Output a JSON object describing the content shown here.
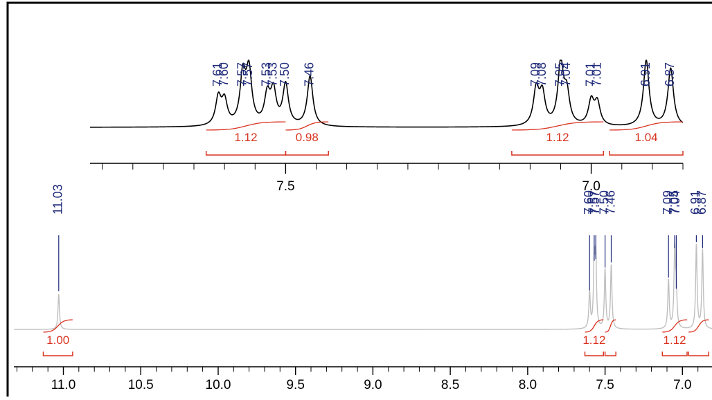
{
  "colors": {
    "frame": "#000000",
    "inset_spectrum": "#000000",
    "main_spectrum": "#bfbfbf",
    "peak_label": "#1f2a7a",
    "integral": "#d9321f",
    "axis": "#000000"
  },
  "chart_data": [
    {
      "type": "line",
      "name": "inset",
      "xlim": [
        7.82,
        6.85
      ],
      "axis_reversed": true,
      "y_axis_visible": false,
      "ticks": {
        "major": [
          7.5,
          7.0
        ],
        "labels": [
          "7.5",
          "7.0"
        ],
        "minor_step": 0.05
      },
      "peaks": [
        {
          "x": 7.61,
          "h": 0.42,
          "label": "7.61"
        },
        {
          "x": 7.6,
          "h": 0.36,
          "label": "7.60"
        },
        {
          "x": 7.57,
          "h": 0.74,
          "label": "7.57"
        },
        {
          "x": 7.56,
          "h": 0.8,
          "label": "7.57"
        },
        {
          "x": 7.53,
          "h": 0.44,
          "label": "7.53"
        },
        {
          "x": 7.52,
          "h": 0.5,
          "label": "7.53"
        },
        {
          "x": 7.5,
          "h": 0.62,
          "label": "7.50"
        },
        {
          "x": 7.46,
          "h": 0.76,
          "label": "7.46"
        },
        {
          "x": 7.09,
          "h": 0.54,
          "label": "7.09"
        },
        {
          "x": 7.08,
          "h": 0.47,
          "label": "7.08"
        },
        {
          "x": 7.05,
          "h": 0.92,
          "label": "7.05"
        },
        {
          "x": 7.04,
          "h": 0.46,
          "label": "7.04"
        },
        {
          "x": 7.0,
          "h": 0.37,
          "label": "7.01"
        },
        {
          "x": 6.99,
          "h": 0.34,
          "label": "7.01"
        },
        {
          "x": 6.91,
          "h": 1.0,
          "label": "6.91"
        },
        {
          "x": 6.87,
          "h": 0.88,
          "label": "6.87"
        }
      ],
      "integrals": [
        {
          "from": 7.63,
          "to": 7.5,
          "value": "1.12"
        },
        {
          "from": 7.5,
          "to": 7.43,
          "value": "0.98"
        },
        {
          "from": 7.13,
          "to": 6.98,
          "value": "1.12"
        },
        {
          "from": 6.97,
          "to": 6.85,
          "value": "1.04"
        }
      ]
    },
    {
      "type": "line",
      "name": "full",
      "xlim": [
        11.32,
        6.8
      ],
      "axis_reversed": true,
      "y_axis_visible": false,
      "ticks": {
        "major": [
          11.0,
          10.5,
          10.0,
          9.5,
          9.0,
          8.5,
          8.0,
          7.5,
          7.0
        ],
        "labels": [
          "11.0",
          "10.5",
          "10.0",
          "9.5",
          "9.0",
          "8.5",
          "8.0",
          "7.5",
          "7.0"
        ],
        "minor_step": 0.1
      },
      "peaks": [
        {
          "x": 11.03,
          "h": 0.42,
          "label": "11.03"
        },
        {
          "x": 7.6,
          "h": 0.43,
          "label": "7.60"
        },
        {
          "x": 7.57,
          "h": 0.78,
          "label": "7.57"
        },
        {
          "x": 7.56,
          "h": 0.8,
          "label": "7.57"
        },
        {
          "x": 7.5,
          "h": 0.7,
          "label": "7.50"
        },
        {
          "x": 7.46,
          "h": 0.76,
          "label": "7.46"
        },
        {
          "x": 7.09,
          "h": 0.58,
          "label": "7.09"
        },
        {
          "x": 7.05,
          "h": 0.93,
          "label": "7.05"
        },
        {
          "x": 7.04,
          "h": 0.45,
          "label": "7.04"
        },
        {
          "x": 6.91,
          "h": 1.0,
          "label": "6.91"
        },
        {
          "x": 6.87,
          "h": 0.93,
          "label": "6.87"
        }
      ],
      "integrals": [
        {
          "from": 11.13,
          "to": 10.94,
          "value": "1.00"
        },
        {
          "from": 7.63,
          "to": 7.51,
          "value": "1.12"
        },
        {
          "from": 7.5,
          "to": 7.43,
          "value": ""
        },
        {
          "from": 7.13,
          "to": 6.97,
          "value": "1.12"
        },
        {
          "from": 6.96,
          "to": 6.83,
          "value": ""
        }
      ]
    }
  ]
}
